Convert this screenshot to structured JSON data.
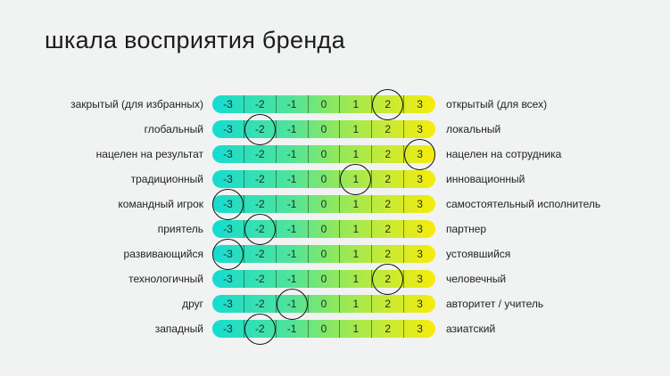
{
  "title": "шкала восприятия бренда",
  "scale": [
    "-3",
    "-2",
    "-1",
    "0",
    "1",
    "2",
    "3"
  ],
  "colors": {
    "background": "#f1f2f2",
    "gradient_start": "#15dcd2",
    "gradient_mid": "#8ee85e",
    "gradient_end": "#f6ec0a",
    "circle": "#111111"
  },
  "rows": [
    {
      "left": "закрытый (для избранных)",
      "right": "открытый (для всех)",
      "selected": "2"
    },
    {
      "left": "глобальный",
      "right": "локальный",
      "selected": "-2"
    },
    {
      "left": "нацелен на результат",
      "right": "нацелен на сотрудника",
      "selected": "3"
    },
    {
      "left": "традиционный",
      "right": "инновационный",
      "selected": "1"
    },
    {
      "left": "командный игрок",
      "right": "самостоятельный исполнитель",
      "selected": "-3"
    },
    {
      "left": "приятель",
      "right": "партнер",
      "selected": "-2"
    },
    {
      "left": "развивающийся",
      "right": "устоявшийся",
      "selected": "-3"
    },
    {
      "left": "технологичный",
      "right": "человечный",
      "selected": "2"
    },
    {
      "left": "друг",
      "right": "авторитет / учитель",
      "selected": "-1"
    },
    {
      "left": "западный",
      "right": "азиатский",
      "selected": "-2"
    }
  ]
}
